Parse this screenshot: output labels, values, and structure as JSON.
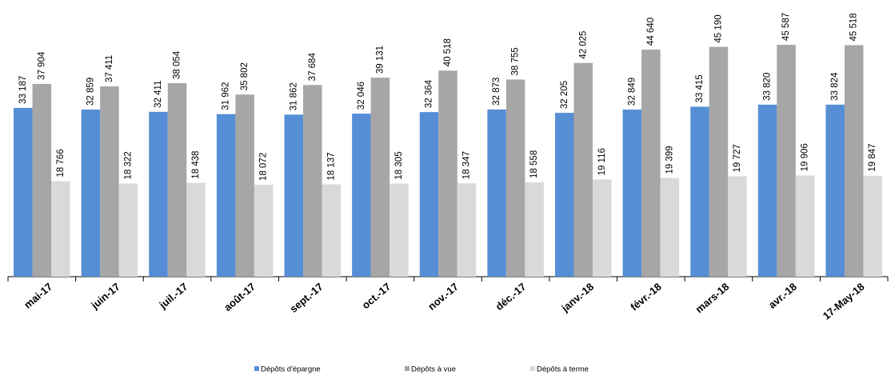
{
  "chart_data": {
    "type": "bar",
    "categories": [
      "mai-17",
      "juin-17",
      "juil.-17",
      "août-17",
      "sept.-17",
      "oct.-17",
      "nov.-17",
      "déc.-17",
      "janv.-18",
      "févr.-18",
      "mars-18",
      "avr.-18",
      "17-May-18"
    ],
    "series": [
      {
        "name": "Dépôts d'épargne",
        "color": "#558ed5",
        "values": [
          33187,
          32859,
          32411,
          31962,
          31862,
          32046,
          32364,
          32873,
          32205,
          32849,
          33415,
          33820,
          33824
        ],
        "value_labels": [
          "33 187",
          "32 859",
          "32 411",
          "31 962",
          "31 862",
          "32 046",
          "32 364",
          "32 873",
          "32 205",
          "32 849",
          "33 415",
          "33 820",
          "33 824"
        ]
      },
      {
        "name": "Dépôts à vue",
        "color": "#a6a6a6",
        "values": [
          37904,
          37411,
          38054,
          35802,
          37684,
          39131,
          40518,
          38755,
          42025,
          44640,
          45190,
          45587,
          45518
        ],
        "value_labels": [
          "37 904",
          "37 411",
          "38 054",
          "35 802",
          "37 684",
          "39 131",
          "40 518",
          "38 755",
          "42 025",
          "44 640",
          "45 190",
          "45 587",
          "45 518"
        ]
      },
      {
        "name": "Dépôts à terme",
        "color": "#d9d9d9",
        "values": [
          18766,
          18322,
          18438,
          18072,
          18137,
          18305,
          18347,
          18558,
          19116,
          19399,
          19727,
          19906,
          19847
        ],
        "value_labels": [
          "18 766",
          "18 322",
          "18 438",
          "18 072",
          "18 137",
          "18 305",
          "18 347",
          "18 558",
          "19 116",
          "19 399",
          "19 727",
          "19 906",
          "19 847"
        ]
      }
    ],
    "ylim": [
      0,
      54400
    ]
  }
}
